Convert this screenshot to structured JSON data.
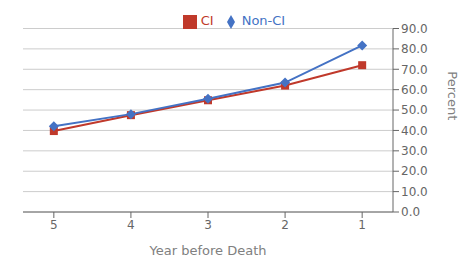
{
  "chart_data": {
    "type": "line",
    "x": [
      5,
      4,
      3,
      2,
      1
    ],
    "series": [
      {
        "name": "CI",
        "color": "#C0392B",
        "marker": "square",
        "values": [
          39.7,
          47.5,
          54.8,
          62.0,
          72.0
        ]
      },
      {
        "name": "Non-CI",
        "color": "#4472C4",
        "marker": "diamond",
        "values": [
          42.1,
          48.0,
          55.5,
          63.5,
          81.7
        ]
      }
    ],
    "x_label": "Year before Death",
    "y_label": "Percent",
    "xlim": [
      5.4,
      0.6
    ],
    "xticks": [
      5,
      4,
      3,
      2,
      1
    ],
    "ylim": [
      0,
      90
    ],
    "yticks": [
      {
        "value": 0,
        "label": "0.0"
      },
      {
        "value": 10,
        "label": "10.0"
      },
      {
        "value": 20,
        "label": "20.0"
      },
      {
        "value": 30,
        "label": "30.0"
      },
      {
        "value": 40,
        "label": "40.0"
      },
      {
        "value": 50,
        "label": "50.0"
      },
      {
        "value": 60,
        "label": "60.0"
      },
      {
        "value": 70,
        "label": "70.0"
      },
      {
        "value": 80,
        "label": "80.0"
      },
      {
        "value": 90,
        "label": "90.0"
      }
    ],
    "grid": true,
    "legend": "top"
  }
}
